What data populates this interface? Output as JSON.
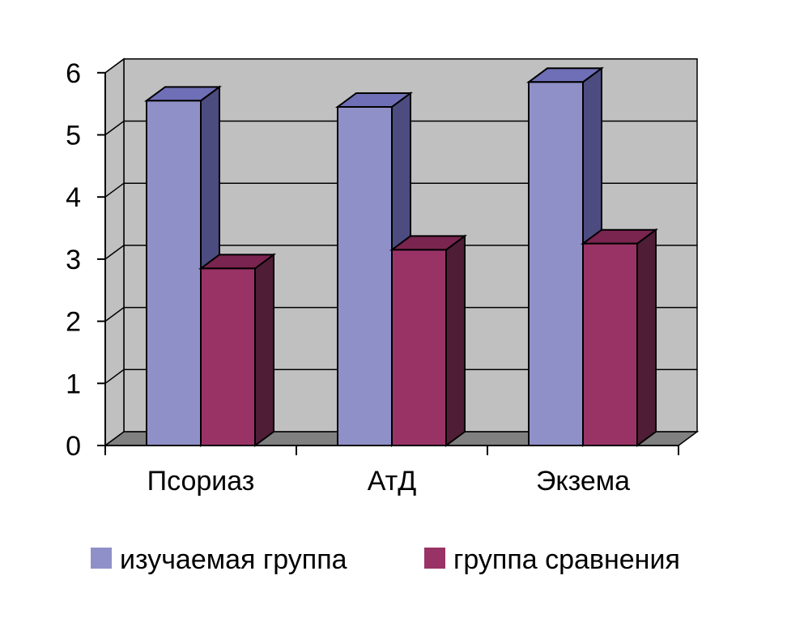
{
  "chart_data": {
    "type": "bar",
    "categories": [
      "Псориаз",
      "АтД",
      "Экзема"
    ],
    "series": [
      {
        "name": "изучаемая группа",
        "values": [
          5.55,
          5.45,
          5.85
        ]
      },
      {
        "name": "группа сравнения",
        "values": [
          2.85,
          3.15,
          3.25
        ]
      }
    ],
    "yticks": [
      "0",
      "1",
      "2",
      "3",
      "4",
      "5",
      "6"
    ],
    "ylim": [
      0,
      6
    ],
    "grid": true,
    "legend_position": "bottom",
    "style": "3d-clustered-column"
  },
  "colors": {
    "series_front": [
      "#9090c8",
      "#993366"
    ],
    "series_side": [
      "#4c4c80",
      "#4f1d36"
    ],
    "series_top": [
      "#6f6fb7",
      "#7a2450"
    ],
    "wall": "#c0c0c0",
    "floor": "#808080",
    "grid": "#000000",
    "axis": "#000000"
  }
}
